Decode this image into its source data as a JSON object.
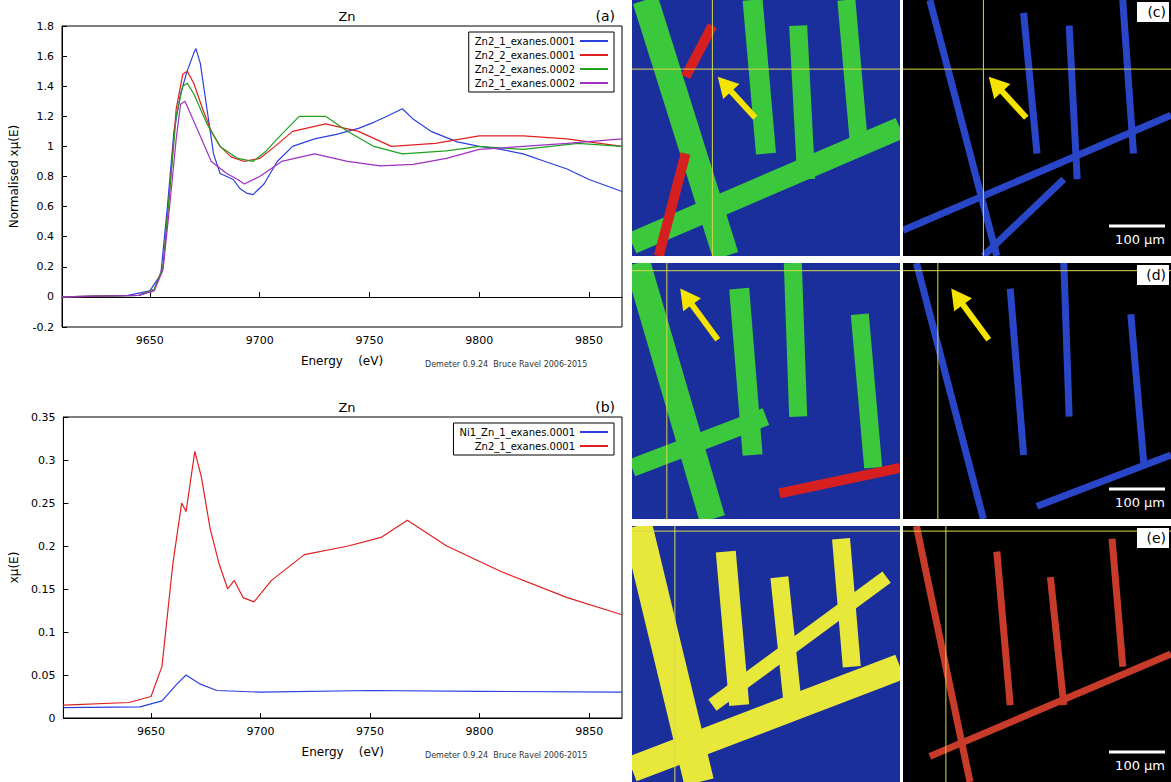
{
  "chart_data": [
    {
      "type": "line",
      "title": "Zn",
      "panel_label": "(a)",
      "footer": "Demeter 0.9.24  Bruce Ravel 2006-2015",
      "x_label": "Energy    (eV)",
      "y_label": "Normalised xμ(E)",
      "xlim": [
        9610,
        9865
      ],
      "xticks": [
        9650,
        9700,
        9750,
        9800,
        9850
      ],
      "ylim": [
        -0.2,
        1.8
      ],
      "yticks": [
        -0.2,
        0,
        0.2,
        0.4,
        0.6,
        0.8,
        1,
        1.2,
        1.4,
        1.6,
        1.8
      ],
      "grid": false,
      "legend": "top-right",
      "series": [
        {
          "name": "Zn2_1_exanes.0001",
          "color": "#2c3ee0",
          "x": [
            9610,
            9640,
            9650,
            9655,
            9658,
            9661,
            9664,
            9667,
            9670,
            9671,
            9673,
            9676,
            9679,
            9682,
            9685,
            9688,
            9691,
            9694,
            9697,
            9702,
            9708,
            9715,
            9725,
            9735,
            9745,
            9752,
            9758,
            9765,
            9770,
            9778,
            9790,
            9800,
            9810,
            9820,
            9830,
            9840,
            9850,
            9865
          ],
          "values": [
            0,
            0.01,
            0.04,
            0.15,
            0.6,
            1.1,
            1.35,
            1.5,
            1.62,
            1.65,
            1.55,
            1.25,
            0.95,
            0.82,
            0.8,
            0.78,
            0.72,
            0.69,
            0.68,
            0.75,
            0.9,
            1.0,
            1.05,
            1.08,
            1.12,
            1.16,
            1.2,
            1.25,
            1.18,
            1.1,
            1.03,
            1.0,
            0.98,
            0.95,
            0.9,
            0.85,
            0.78,
            0.7
          ]
        },
        {
          "name": "Zn2_2_exanes.0001",
          "color": "#e02020",
          "x": [
            9610,
            9645,
            9652,
            9656,
            9659,
            9662,
            9665,
            9667,
            9670,
            9674,
            9678,
            9682,
            9687,
            9693,
            9700,
            9707,
            9715,
            9730,
            9745,
            9760,
            9780,
            9800,
            9820,
            9840,
            9855,
            9865
          ],
          "values": [
            0,
            0.01,
            0.05,
            0.2,
            0.7,
            1.25,
            1.48,
            1.5,
            1.42,
            1.25,
            1.1,
            1.0,
            0.93,
            0.9,
            0.92,
            1.0,
            1.1,
            1.15,
            1.1,
            1.0,
            1.02,
            1.07,
            1.07,
            1.05,
            1.02,
            1.0
          ]
        },
        {
          "name": "Zn2_2_exanes.0002",
          "color": "#20a020",
          "x": [
            9610,
            9645,
            9652,
            9656,
            9659,
            9662,
            9665,
            9667,
            9670,
            9676,
            9682,
            9690,
            9697,
            9703,
            9708,
            9718,
            9730,
            9740,
            9752,
            9765,
            9785,
            9800,
            9820,
            9845,
            9865
          ],
          "values": [
            0,
            0.01,
            0.05,
            0.2,
            0.7,
            1.2,
            1.4,
            1.42,
            1.35,
            1.15,
            1.0,
            0.92,
            0.9,
            0.97,
            1.05,
            1.2,
            1.2,
            1.1,
            1.0,
            0.95,
            0.97,
            1.0,
            0.98,
            1.02,
            1.0
          ]
        },
        {
          "name": "Zn2_1_exanes.0002",
          "color": "#a030c0",
          "x": [
            9610,
            9645,
            9652,
            9656,
            9659,
            9662,
            9664,
            9666,
            9669,
            9672,
            9678,
            9685,
            9690,
            9693,
            9700,
            9710,
            9725,
            9740,
            9755,
            9770,
            9785,
            9800,
            9820,
            9840,
            9865
          ],
          "values": [
            0,
            0.01,
            0.04,
            0.18,
            0.6,
            1.05,
            1.28,
            1.3,
            1.2,
            1.1,
            0.9,
            0.82,
            0.78,
            0.75,
            0.8,
            0.9,
            0.95,
            0.9,
            0.87,
            0.88,
            0.92,
            0.98,
            1.0,
            1.02,
            1.05
          ]
        }
      ]
    },
    {
      "type": "line",
      "title": "Zn",
      "panel_label": "(b)",
      "footer": "Demeter 0.9.24  Bruce Ravel 2006-2015",
      "x_label": "Energy    (eV)",
      "y_label": "xμ(E)",
      "xlim": [
        9610,
        9865
      ],
      "xticks": [
        9650,
        9700,
        9750,
        9800,
        9850
      ],
      "ylim": [
        0,
        0.35
      ],
      "yticks": [
        0,
        0.05,
        0.1,
        0.15,
        0.2,
        0.25,
        0.3,
        0.35
      ],
      "grid": false,
      "legend": "top-right",
      "series": [
        {
          "name": "Ni1_Zn_1_exanes.0001",
          "color": "#2c3ee0",
          "x": [
            9610,
            9645,
            9655,
            9662,
            9666,
            9672,
            9680,
            9700,
            9750,
            9800,
            9865
          ],
          "values": [
            0.012,
            0.013,
            0.02,
            0.04,
            0.05,
            0.04,
            0.032,
            0.03,
            0.032,
            0.031,
            0.03
          ]
        },
        {
          "name": "Zn2_1_exanes.0001",
          "color": "#e02020",
          "x": [
            9610,
            9640,
            9650,
            9655,
            9660,
            9664,
            9666,
            9670,
            9673,
            9677,
            9681,
            9685,
            9688,
            9692,
            9697,
            9705,
            9720,
            9740,
            9755,
            9767,
            9785,
            9810,
            9840,
            9865
          ],
          "values": [
            0.015,
            0.018,
            0.025,
            0.06,
            0.18,
            0.25,
            0.24,
            0.31,
            0.28,
            0.22,
            0.18,
            0.15,
            0.16,
            0.14,
            0.135,
            0.16,
            0.19,
            0.2,
            0.21,
            0.23,
            0.2,
            0.17,
            0.14,
            0.12
          ]
        }
      ]
    }
  ],
  "images": [
    {
      "label": "(c)",
      "scale_bar": "100 μm",
      "arrow": true
    },
    {
      "label": "(d)",
      "scale_bar": "100 μm",
      "arrow": true
    },
    {
      "label": "(e)",
      "scale_bar": "100 μm",
      "arrow": false
    }
  ]
}
